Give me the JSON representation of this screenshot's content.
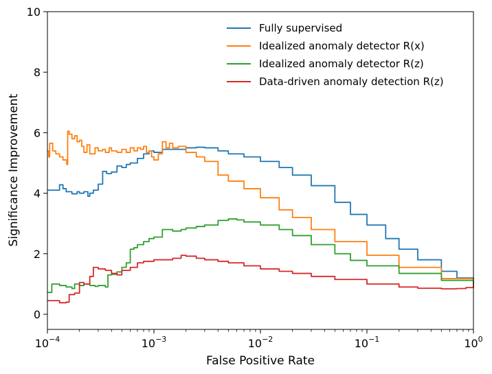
{
  "chart_data": {
    "type": "line",
    "title": "",
    "xlabel": "False Positive Rate",
    "ylabel": "Significance Improvement",
    "xscale": "log",
    "xlim": [
      0.0001,
      1
    ],
    "ylim": [
      -0.5,
      10
    ],
    "x_ticks": [
      {
        "value": 0.0001,
        "base": "10",
        "exp": "−4"
      },
      {
        "value": 0.001,
        "base": "10",
        "exp": "−3"
      },
      {
        "value": 0.01,
        "base": "10",
        "exp": "−2"
      },
      {
        "value": 0.1,
        "base": "10",
        "exp": "−1"
      },
      {
        "value": 1,
        "base": "10",
        "exp": "0"
      }
    ],
    "y_ticks": [
      {
        "value": 0,
        "label": "0"
      },
      {
        "value": 2,
        "label": "2"
      },
      {
        "value": 4,
        "label": "4"
      },
      {
        "value": 6,
        "label": "6"
      },
      {
        "value": 8,
        "label": "8"
      },
      {
        "value": 10,
        "label": "10"
      }
    ],
    "grid": false,
    "legend_position": "top-right",
    "series": [
      {
        "name": "Fully supervised",
        "color": "#1f77b4",
        "x": [
          0.0001,
          0.00011,
          0.00012,
          0.00013,
          0.00014,
          0.00015,
          0.00017,
          0.00019,
          0.0002,
          0.00022,
          0.00024,
          0.00025,
          0.00027,
          0.0003,
          0.00033,
          0.00036,
          0.0004,
          0.00045,
          0.0005,
          0.00055,
          0.0006,
          0.0007,
          0.0008,
          0.0009,
          0.001,
          0.0012,
          0.0015,
          0.002,
          0.0025,
          0.003,
          0.004,
          0.005,
          0.007,
          0.01,
          0.015,
          0.02,
          0.03,
          0.05,
          0.07,
          0.1,
          0.15,
          0.2,
          0.3,
          0.5,
          0.7,
          1.0
        ],
        "y": [
          4.1,
          4.1,
          4.1,
          4.28,
          4.15,
          4.05,
          3.98,
          4.05,
          4.0,
          4.05,
          3.9,
          4.0,
          4.1,
          4.3,
          4.72,
          4.65,
          4.7,
          4.9,
          4.85,
          4.95,
          5.0,
          5.15,
          5.3,
          5.4,
          5.35,
          5.45,
          5.45,
          5.5,
          5.52,
          5.5,
          5.4,
          5.3,
          5.2,
          5.05,
          4.85,
          4.6,
          4.25,
          3.7,
          3.3,
          2.95,
          2.5,
          2.15,
          1.8,
          1.42,
          1.2,
          1.0
        ]
      },
      {
        "name": "Idealized anomaly detector R(x)",
        "color": "#ff7f0e",
        "x": [
          0.0001,
          0.000103,
          0.000105,
          0.000112,
          0.00012,
          0.00013,
          0.00014,
          0.000152,
          0.000155,
          0.00016,
          0.00017,
          0.00018,
          0.00019,
          0.0002,
          0.00021,
          0.00022,
          0.000235,
          0.00025,
          0.00028,
          0.0003,
          0.00033,
          0.00035,
          0.00038,
          0.0004,
          0.00045,
          0.0005,
          0.00055,
          0.0006,
          0.00065,
          0.0007,
          0.00075,
          0.0008,
          0.00085,
          0.0009,
          0.00095,
          0.001,
          0.0011,
          0.0012,
          0.0013,
          0.0014,
          0.0015,
          0.0017,
          0.002,
          0.0025,
          0.003,
          0.004,
          0.005,
          0.007,
          0.01,
          0.015,
          0.02,
          0.03,
          0.05,
          0.1,
          0.2,
          0.5,
          1.0
        ],
        "y": [
          5.4,
          5.2,
          5.65,
          5.4,
          5.3,
          5.2,
          5.1,
          4.95,
          6.05,
          5.95,
          5.8,
          5.9,
          5.7,
          5.75,
          5.55,
          5.35,
          5.6,
          5.3,
          5.5,
          5.4,
          5.45,
          5.35,
          5.5,
          5.4,
          5.35,
          5.45,
          5.35,
          5.5,
          5.4,
          5.5,
          5.45,
          5.55,
          5.35,
          5.4,
          5.2,
          5.1,
          5.3,
          5.7,
          5.5,
          5.65,
          5.5,
          5.55,
          5.35,
          5.2,
          5.05,
          4.6,
          4.4,
          4.15,
          3.85,
          3.45,
          3.2,
          2.8,
          2.4,
          1.95,
          1.55,
          1.18,
          1.0
        ]
      },
      {
        "name": "Idealized anomaly detector R(z)",
        "color": "#2ca02c",
        "x": [
          0.0001,
          0.000105,
          0.00011,
          0.00013,
          0.00015,
          0.00017,
          0.00018,
          0.0002,
          0.00022,
          0.00025,
          0.00028,
          0.0003,
          0.00035,
          0.00037,
          0.0004,
          0.00045,
          0.0005,
          0.00055,
          0.0006,
          0.00065,
          0.0007,
          0.00075,
          0.0008,
          0.0009,
          0.001,
          0.0012,
          0.0015,
          0.0018,
          0.002,
          0.0025,
          0.003,
          0.004,
          0.005,
          0.006,
          0.007,
          0.01,
          0.015,
          0.02,
          0.03,
          0.05,
          0.07,
          0.1,
          0.2,
          0.5,
          1.0
        ],
        "y": [
          0.72,
          0.72,
          1.0,
          0.95,
          0.9,
          0.85,
          1.0,
          0.95,
          1.0,
          0.95,
          0.92,
          0.95,
          0.9,
          1.3,
          1.32,
          1.4,
          1.55,
          1.7,
          2.15,
          2.2,
          2.3,
          2.3,
          2.4,
          2.5,
          2.55,
          2.8,
          2.75,
          2.8,
          2.85,
          2.9,
          2.95,
          3.1,
          3.15,
          3.12,
          3.05,
          2.95,
          2.8,
          2.6,
          2.3,
          2.0,
          1.78,
          1.6,
          1.35,
          1.12,
          1.0
        ]
      },
      {
        "name": "Data-driven anomaly detection R(z)",
        "color": "#d62728",
        "x": [
          0.0001,
          0.00013,
          0.00015,
          0.00016,
          0.00018,
          0.0002,
          0.00022,
          0.00025,
          0.00027,
          0.0003,
          0.00035,
          0.0004,
          0.00045,
          0.0005,
          0.0006,
          0.0007,
          0.0008,
          0.001,
          0.0012,
          0.0015,
          0.0018,
          0.002,
          0.0025,
          0.003,
          0.004,
          0.005,
          0.007,
          0.01,
          0.015,
          0.02,
          0.03,
          0.05,
          0.1,
          0.2,
          0.3,
          0.5,
          0.7,
          0.85,
          1.0
        ],
        "y": [
          0.45,
          0.38,
          0.4,
          0.65,
          0.7,
          1.05,
          1.0,
          1.25,
          1.55,
          1.5,
          1.45,
          1.35,
          1.3,
          1.45,
          1.55,
          1.7,
          1.75,
          1.8,
          1.8,
          1.85,
          1.95,
          1.92,
          1.85,
          1.8,
          1.75,
          1.7,
          1.6,
          1.5,
          1.42,
          1.35,
          1.25,
          1.15,
          1.0,
          0.9,
          0.86,
          0.84,
          0.85,
          0.88,
          1.0
        ]
      }
    ]
  }
}
